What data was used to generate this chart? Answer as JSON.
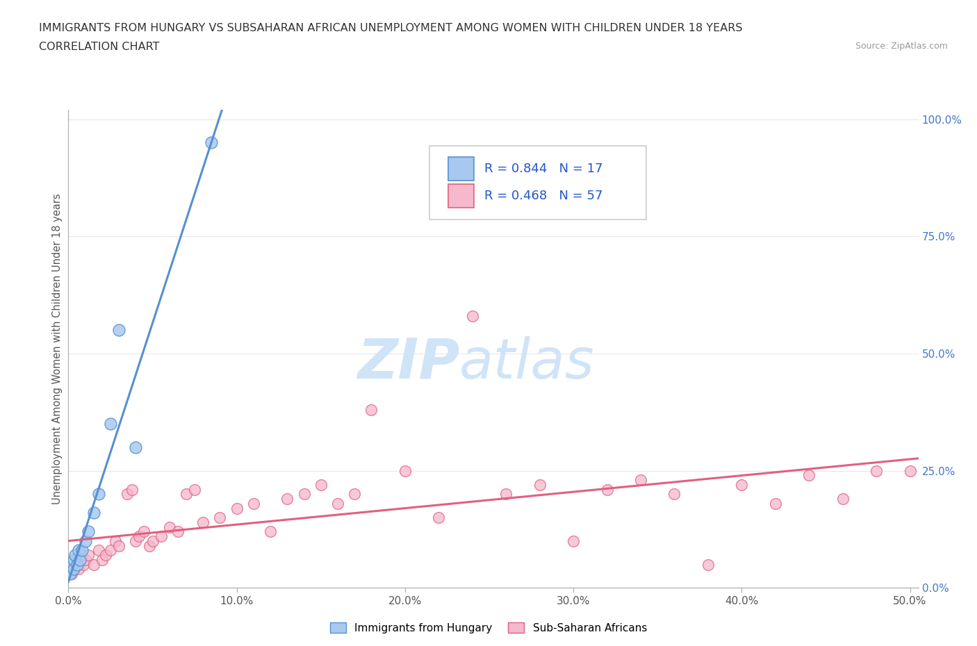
{
  "title_line1": "IMMIGRANTS FROM HUNGARY VS SUBSAHARAN AFRICAN UNEMPLOYMENT AMONG WOMEN WITH CHILDREN UNDER 18 YEARS",
  "title_line2": "CORRELATION CHART",
  "source": "Source: ZipAtlas.com",
  "ylabel": "Unemployment Among Women with Children Under 18 years",
  "xlim": [
    0.0,
    0.505
  ],
  "ylim": [
    0.0,
    1.02
  ],
  "xticks": [
    0.0,
    0.1,
    0.2,
    0.3,
    0.4,
    0.5
  ],
  "yticks": [
    0.0,
    0.25,
    0.5,
    0.75,
    1.0
  ],
  "hungary_color": "#a8c8f0",
  "hungary_edge": "#5590d0",
  "subsaharan_color": "#f5b8cc",
  "subsaharan_edge": "#e06080",
  "hungary_R": 0.844,
  "hungary_N": 17,
  "subsaharan_R": 0.468,
  "subsaharan_N": 57,
  "legend_R_color": "#2255cc",
  "watermark_color": "#d0e4f8",
  "grid_color": "#e8e8e8",
  "hungary_x": [
    0.001,
    0.002,
    0.003,
    0.003,
    0.004,
    0.005,
    0.006,
    0.007,
    0.008,
    0.01,
    0.012,
    0.015,
    0.018,
    0.025,
    0.03,
    0.04,
    0.085
  ],
  "hungary_y": [
    0.03,
    0.05,
    0.04,
    0.06,
    0.07,
    0.05,
    0.08,
    0.06,
    0.08,
    0.1,
    0.12,
    0.16,
    0.2,
    0.35,
    0.55,
    0.3,
    0.95
  ],
  "subsaharan_x": [
    0.001,
    0.002,
    0.003,
    0.004,
    0.005,
    0.006,
    0.007,
    0.008,
    0.009,
    0.01,
    0.012,
    0.015,
    0.018,
    0.02,
    0.022,
    0.025,
    0.028,
    0.03,
    0.035,
    0.038,
    0.04,
    0.042,
    0.045,
    0.048,
    0.05,
    0.055,
    0.06,
    0.065,
    0.07,
    0.075,
    0.08,
    0.09,
    0.1,
    0.11,
    0.12,
    0.13,
    0.14,
    0.15,
    0.16,
    0.17,
    0.18,
    0.2,
    0.22,
    0.24,
    0.26,
    0.28,
    0.3,
    0.32,
    0.34,
    0.36,
    0.38,
    0.4,
    0.42,
    0.44,
    0.46,
    0.48,
    0.5
  ],
  "subsaharan_y": [
    0.05,
    0.03,
    0.04,
    0.06,
    0.05,
    0.04,
    0.06,
    0.07,
    0.05,
    0.06,
    0.07,
    0.05,
    0.08,
    0.06,
    0.07,
    0.08,
    0.1,
    0.09,
    0.2,
    0.21,
    0.1,
    0.11,
    0.12,
    0.09,
    0.1,
    0.11,
    0.13,
    0.12,
    0.2,
    0.21,
    0.14,
    0.15,
    0.17,
    0.18,
    0.12,
    0.19,
    0.2,
    0.22,
    0.18,
    0.2,
    0.38,
    0.25,
    0.15,
    0.58,
    0.2,
    0.22,
    0.1,
    0.21,
    0.23,
    0.2,
    0.05,
    0.22,
    0.18,
    0.24,
    0.19,
    0.25,
    0.25
  ]
}
